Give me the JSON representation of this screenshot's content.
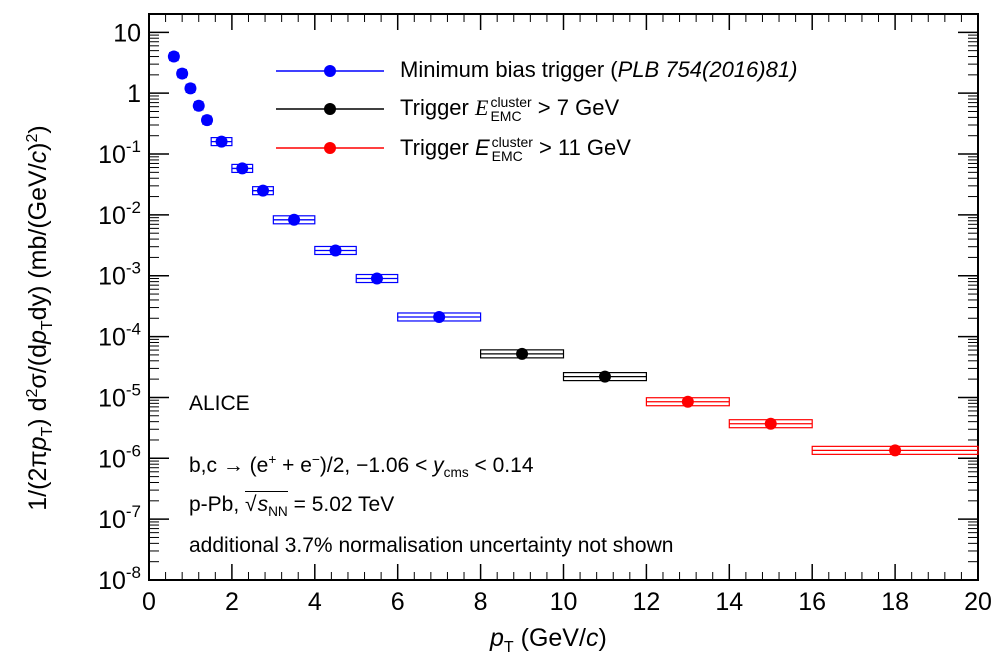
{
  "chart_data": {
    "type": "scatter",
    "xlabel": {
      "var": "p",
      "sub": "T",
      "unit": "(GeV/c)"
    },
    "ylabel": "1/(2πp_T) d²σ/(dp_T dy) (mb/(GeV/c)²)",
    "xlim": [
      0,
      20
    ],
    "ylim": [
      1e-08,
      20
    ],
    "yscale": "log",
    "x_ticks": [
      "0",
      "2",
      "4",
      "6",
      "8",
      "10",
      "12",
      "14",
      "16",
      "18",
      "20"
    ],
    "y_ticks": [
      {
        "base": "10",
        "exp": "-8"
      },
      {
        "base": "10",
        "exp": "-7"
      },
      {
        "base": "10",
        "exp": "-6"
      },
      {
        "base": "10",
        "exp": "-5"
      },
      {
        "base": "10",
        "exp": "-4"
      },
      {
        "base": "10",
        "exp": "-3"
      },
      {
        "base": "10",
        "exp": "-2"
      },
      {
        "base": "10",
        "exp": "-1"
      },
      {
        "base": "1",
        "exp": ""
      },
      {
        "base": "10",
        "exp": ""
      }
    ],
    "legend_position": "top-center",
    "series": [
      {
        "name": "Minimum bias trigger (PLB 754(2016)81)",
        "color": "#0000ff",
        "points": [
          {
            "x": 0.6,
            "y": 4.0,
            "xlo": 0.5,
            "xhi": 0.7
          },
          {
            "x": 0.8,
            "y": 2.1,
            "xlo": 0.7,
            "xhi": 0.9
          },
          {
            "x": 1.0,
            "y": 1.2,
            "xlo": 0.9,
            "xhi": 1.1
          },
          {
            "x": 1.2,
            "y": 0.62,
            "xlo": 1.1,
            "xhi": 1.3
          },
          {
            "x": 1.4,
            "y": 0.36,
            "xlo": 1.3,
            "xhi": 1.5
          },
          {
            "x": 1.75,
            "y": 0.16,
            "xlo": 1.5,
            "xhi": 2.0
          },
          {
            "x": 2.25,
            "y": 0.058,
            "xlo": 2.0,
            "xhi": 2.5
          },
          {
            "x": 2.75,
            "y": 0.025,
            "xlo": 2.5,
            "xhi": 3.0
          },
          {
            "x": 3.5,
            "y": 0.0083,
            "xlo": 3.0,
            "xhi": 4.0
          },
          {
            "x": 4.5,
            "y": 0.0026,
            "xlo": 4.0,
            "xhi": 5.0
          },
          {
            "x": 5.5,
            "y": 0.0009,
            "xlo": 5.0,
            "xhi": 6.0
          },
          {
            "x": 7.0,
            "y": 0.00021,
            "xlo": 6.0,
            "xhi": 8.0
          }
        ]
      },
      {
        "name": "Trigger E_EMC^cluster > 7 GeV",
        "color": "#000000",
        "points": [
          {
            "x": 9.0,
            "y": 5.2e-05,
            "xlo": 8.0,
            "xhi": 10.0
          },
          {
            "x": 11.0,
            "y": 2.2e-05,
            "xlo": 10.0,
            "xhi": 12.0
          }
        ]
      },
      {
        "name": "Trigger E_EMC^cluster > 11 GeV",
        "color": "#ff0000",
        "points": [
          {
            "x": 13.0,
            "y": 8.5e-06,
            "xlo": 12.0,
            "xhi": 14.0
          },
          {
            "x": 15.0,
            "y": 3.7e-06,
            "xlo": 14.0,
            "xhi": 16.0
          },
          {
            "x": 18.0,
            "y": 1.35e-06,
            "xlo": 16.0,
            "xhi": 20.0
          }
        ]
      }
    ],
    "legend": {
      "mb_text": "Minimum bias trigger (",
      "mb_ref": "PLB 754(2016)81)",
      "t7_pre": "Trigger ",
      "t7_post": " > 7 GeV",
      "t11_pre": "Trigger ",
      "t11_post": " > 11 GeV",
      "e_var": "E",
      "e_sup": "cluster",
      "e_sub": "EMC"
    },
    "annotations": {
      "experiment": "ALICE",
      "process_pre": "b,c → (e",
      "process_plus": "+",
      "process_mid": " + e",
      "process_minus": "−",
      "process_post": ")/2, −1.06 < ",
      "process_y": "y",
      "process_ysub": "cms",
      "process_end": " < 0.14",
      "system_pre": "p-Pb, ",
      "system_s": "s",
      "system_ssub": "NN",
      "system_post": " = 5.02 TeV",
      "note": "additional 3.7% normalisation uncertainty not shown"
    }
  }
}
